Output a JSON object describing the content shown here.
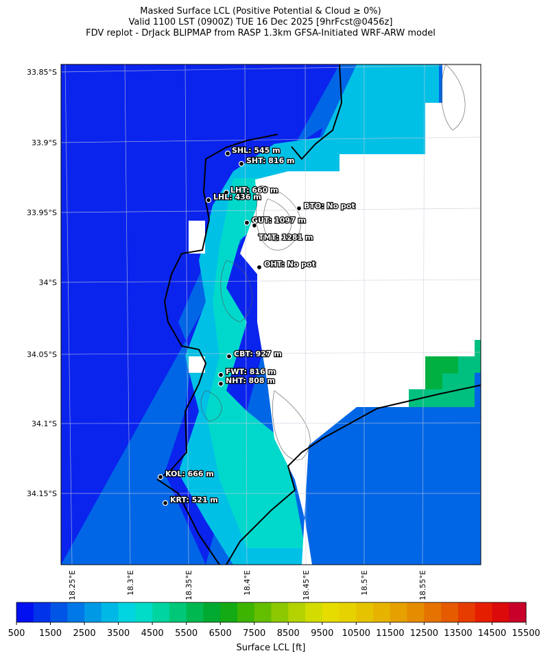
{
  "header": {
    "title_lines": [
      "Masked Surface LCL (Positive Potential & Cloud ≥ 0%)",
      "Valid 1100 LST (0900Z) TUE 16 Dec 2025 [9hrFcst@0456z]",
      "FDV replot - DrJack BLIPMAP from RASP 1.3km GFSA-Initiated WRF-ARW model"
    ]
  },
  "map": {
    "lat_labels": [
      "33.85°S",
      "33.9°S",
      "33.95°S",
      "34°S",
      "34.05°S",
      "34.1°S",
      "34.15°S"
    ],
    "lon_labels": [
      "18.25°E",
      "18.3°E",
      "18.35°E",
      "18.4°E",
      "18.45°E",
      "18.5°E",
      "18.55°E"
    ],
    "stations": [
      "SHL: 545 m",
      "SHT: 816 m",
      "LHT: 660 m",
      "LHL: 436 m",
      "BTO: No pot",
      "GUT: 1097 m",
      "TMT: 1281 m",
      "OHT: No pot",
      "CBT: 927 m",
      "FWT: 816 m",
      "NHT: 808 m",
      "KOL: 666 m",
      "KRT: 521 m"
    ]
  },
  "colorbar": {
    "label": "Surface LCL [ft]",
    "ticks": [
      500,
      1500,
      2500,
      3500,
      4500,
      5500,
      6500,
      7500,
      8500,
      9500,
      10500,
      11500,
      12500,
      13500,
      14500,
      15500
    ],
    "colors": [
      "#0010f0",
      "#0033ea",
      "#0055e6",
      "#0077e6",
      "#0099e6",
      "#00b8e6",
      "#00d4e0",
      "#00dcc8",
      "#00d4a0",
      "#00c878",
      "#00b850",
      "#00aa30",
      "#14aa14",
      "#3cb400",
      "#64be00",
      "#8cc800",
      "#b4d200",
      "#d2dc00",
      "#e6dc00",
      "#e6d200",
      "#e6c300",
      "#e6b400",
      "#e6a000",
      "#e68c00",
      "#e67300",
      "#e65a00",
      "#e63c00",
      "#e61e00",
      "#dc0a0a",
      "#c8002a"
    ]
  }
}
